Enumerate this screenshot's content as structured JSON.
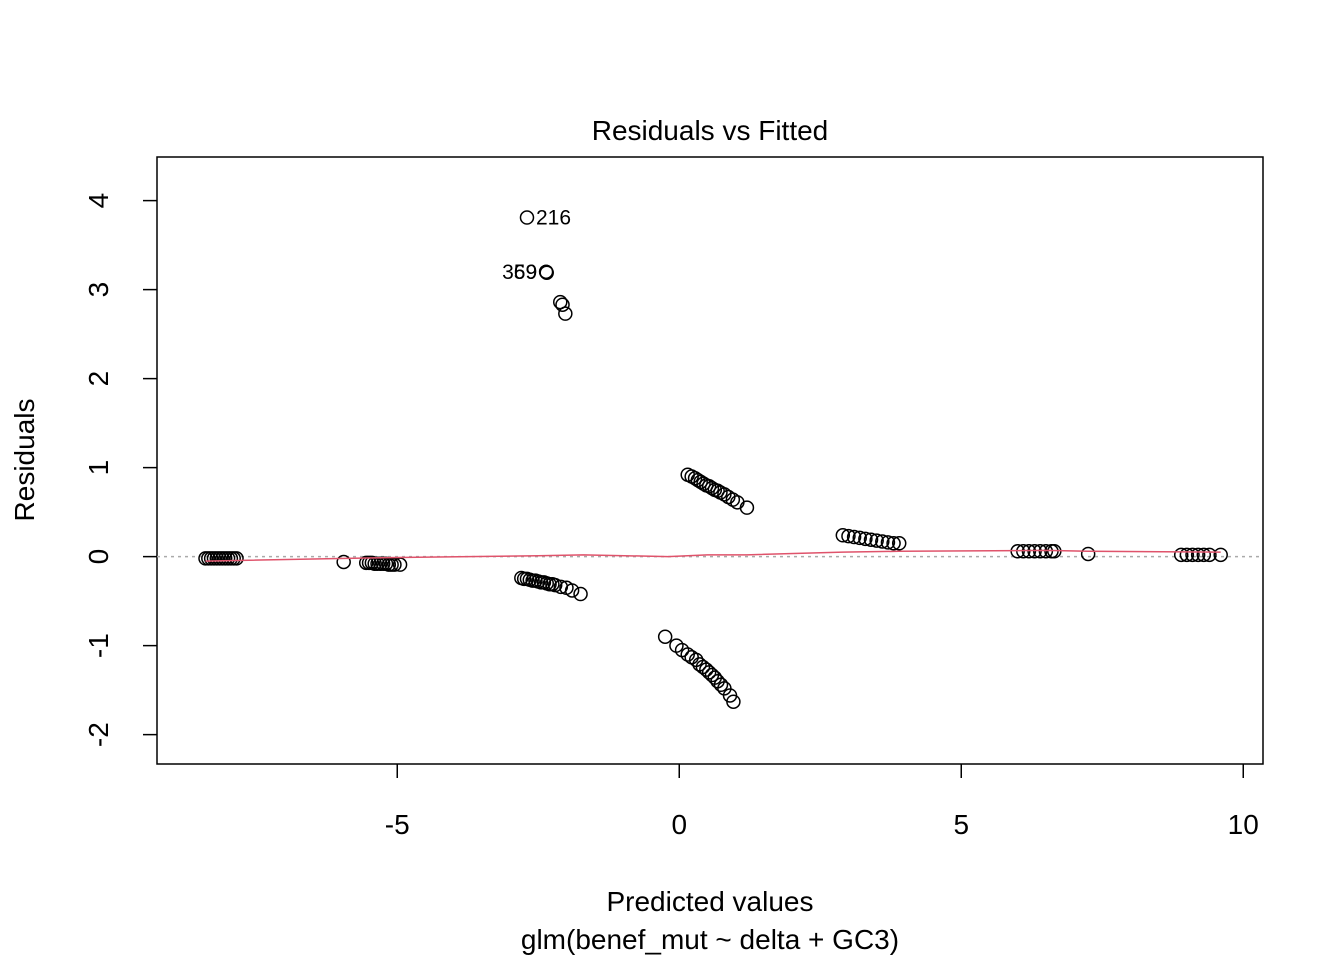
{
  "chart_data": {
    "type": "scatter",
    "title": "Residuals vs Fitted",
    "xlabel": "Predicted values",
    "subtitle": "glm(benef_mut ~ delta + GC3)",
    "ylabel": "Residuals",
    "xlim": [
      -9.26,
      10.35
    ],
    "ylim": [
      -2.33,
      4.49
    ],
    "xticks": [
      -5,
      0,
      5,
      10
    ],
    "yticks": [
      -2,
      -1,
      0,
      1,
      2,
      3,
      4
    ],
    "reference_line": 0,
    "point_color": "#000000",
    "series": [
      {
        "type": "scatter",
        "color": "#000000",
        "x": [
          -8.4,
          -8.35,
          -8.3,
          -8.25,
          -8.2,
          -8.15,
          -8.1,
          -8.05,
          -8.0,
          -7.95,
          -7.9,
          -7.85,
          -5.95,
          -5.55,
          -5.5,
          -5.45,
          -5.4,
          -5.35,
          -5.3,
          -5.25,
          -5.2,
          -5.15,
          -5.1,
          -5.05,
          -4.95,
          -2.8,
          -2.75,
          -2.7,
          -2.65,
          -2.6,
          -2.55,
          -2.5,
          -2.45,
          -2.4,
          -2.35,
          -2.3,
          -2.25,
          -2.2,
          -2.1,
          -2.0,
          -1.9,
          -1.75,
          -2.35,
          -2.11,
          -2.07,
          -2.02,
          0.15,
          0.22,
          0.28,
          0.33,
          0.38,
          0.43,
          0.48,
          0.53,
          0.58,
          0.63,
          0.68,
          0.73,
          0.8,
          0.87,
          0.95,
          1.03,
          1.2,
          -0.25,
          -0.05,
          0.05,
          0.15,
          0.22,
          0.3,
          0.36,
          0.42,
          0.48,
          0.53,
          0.58,
          0.63,
          0.68,
          0.74,
          0.8,
          0.9,
          0.96,
          2.9,
          3.0,
          3.1,
          3.2,
          3.3,
          3.4,
          3.5,
          3.6,
          3.7,
          3.8,
          3.9,
          6.0,
          6.1,
          6.2,
          6.3,
          6.4,
          6.5,
          6.6,
          6.65,
          7.25,
          8.9,
          9.0,
          9.1,
          9.2,
          9.3,
          9.4,
          9.6
        ],
        "y": [
          -0.02,
          -0.02,
          -0.02,
          -0.02,
          -0.02,
          -0.02,
          -0.02,
          -0.02,
          -0.02,
          -0.02,
          -0.02,
          -0.02,
          -0.06,
          -0.07,
          -0.07,
          -0.07,
          -0.08,
          -0.08,
          -0.08,
          -0.08,
          -0.08,
          -0.09,
          -0.09,
          -0.09,
          -0.09,
          -0.24,
          -0.25,
          -0.25,
          -0.26,
          -0.27,
          -0.27,
          -0.28,
          -0.29,
          -0.29,
          -0.3,
          -0.31,
          -0.31,
          -0.32,
          -0.34,
          -0.35,
          -0.38,
          -0.42,
          3.19,
          2.86,
          2.83,
          2.73,
          0.92,
          0.9,
          0.88,
          0.86,
          0.84,
          0.82,
          0.8,
          0.79,
          0.77,
          0.75,
          0.74,
          0.72,
          0.7,
          0.67,
          0.64,
          0.61,
          0.55,
          -0.9,
          -1.0,
          -1.05,
          -1.1,
          -1.13,
          -1.16,
          -1.21,
          -1.24,
          -1.27,
          -1.3,
          -1.33,
          -1.36,
          -1.4,
          -1.44,
          -1.48,
          -1.56,
          -1.63,
          0.24,
          0.23,
          0.22,
          0.21,
          0.2,
          0.19,
          0.18,
          0.17,
          0.16,
          0.15,
          0.15,
          0.06,
          0.06,
          0.06,
          0.06,
          0.06,
          0.06,
          0.06,
          0.06,
          0.03,
          0.02,
          0.02,
          0.02,
          0.02,
          0.02,
          0.02,
          0.02
        ]
      },
      {
        "type": "labeled",
        "color": "#000000",
        "x": [
          -2.7,
          -2.36,
          -2.36
        ],
        "y": [
          3.81,
          3.2,
          3.2
        ],
        "labels": [
          "216",
          "369",
          "59"
        ]
      },
      {
        "type": "line",
        "color": "#DF536B",
        "x": [
          -8.4,
          -5.9,
          -5.0,
          -2.5,
          -1.7,
          -0.2,
          0.5,
          1.2,
          2.9,
          3.9,
          6.5,
          7.25,
          9.6
        ],
        "y": [
          -0.05,
          -0.02,
          -0.01,
          0.01,
          0.02,
          0.0,
          0.02,
          0.02,
          0.05,
          0.06,
          0.07,
          0.06,
          0.05
        ]
      }
    ]
  }
}
